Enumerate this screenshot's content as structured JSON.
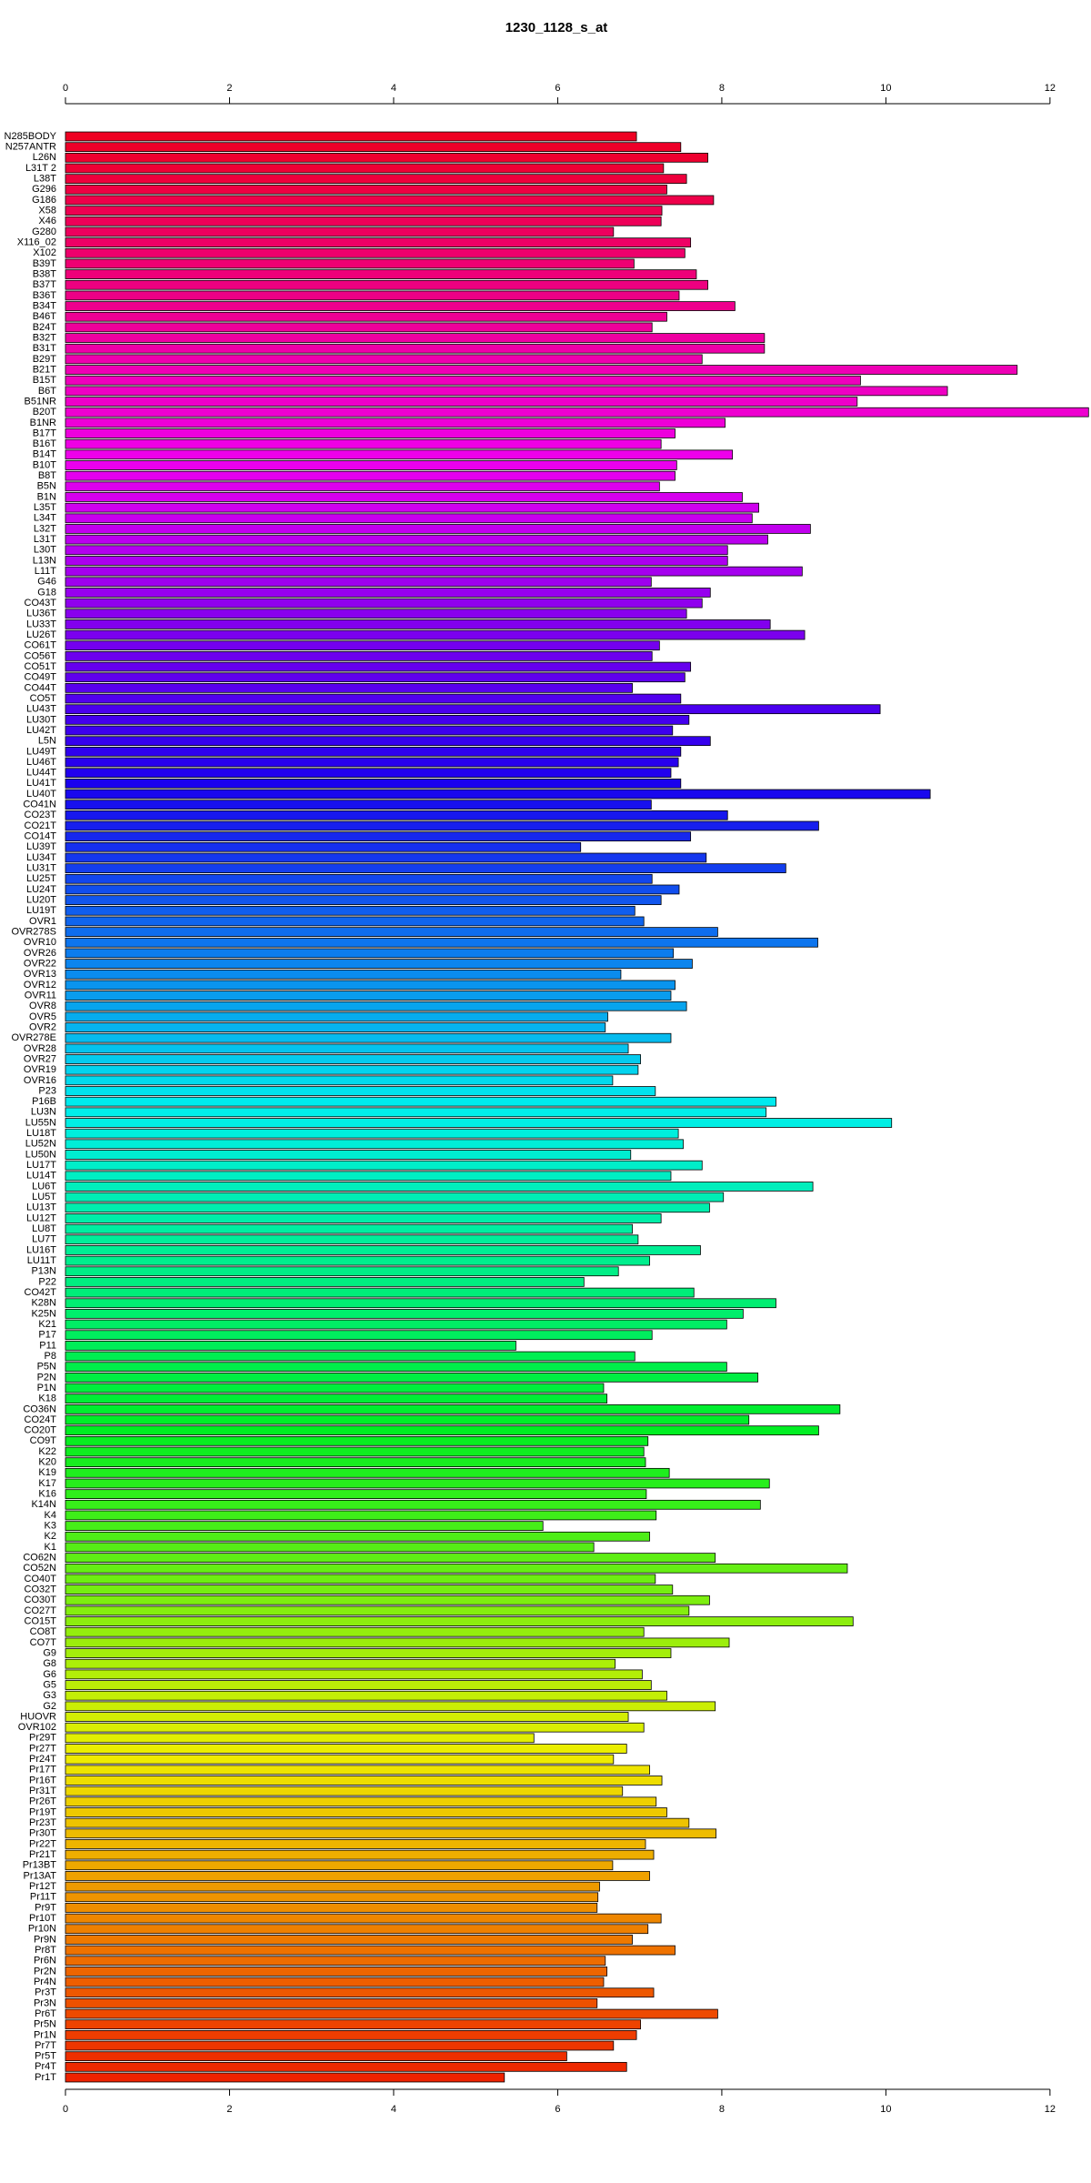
{
  "chart_data": {
    "type": "barh",
    "title": "1230_1128_s_at",
    "categories": [
      "N285BODY",
      "N257ANTR",
      "L26N",
      "L31T 2",
      "L38T",
      "G296",
      "G186",
      "X58",
      "X46",
      "G280",
      "X116_02",
      "X102",
      "B39T",
      "B38T",
      "B37T",
      "B36T",
      "B34T",
      "B46T",
      "B24T",
      "B32T",
      "B31T",
      "B29T",
      "B21T",
      "B15T",
      "B6T",
      "B51NR",
      "B20T",
      "B1NR",
      "B17T",
      "B16T",
      "B14T",
      "B10T",
      "B8T",
      "B5N",
      "B1N",
      "L35T",
      "L34T",
      "L32T",
      "L31T",
      "L30T",
      "L13N",
      "L11T",
      "G46",
      "G18",
      "CO43T",
      "LU36T",
      "LU33T",
      "LU26T",
      "CO61T",
      "CO56T",
      "CO51T",
      "CO49T",
      "CO44T",
      "CO5T",
      "LU43T",
      "LU30T",
      "LU42T",
      "L5N",
      "LU49T",
      "LU46T",
      "LU44T",
      "LU41T",
      "LU40T",
      "CO41N",
      "CO23T",
      "CO21T",
      "CO14T",
      "LU39T",
      "LU34T",
      "LU31T",
      "LU25T",
      "LU24T",
      "LU20T",
      "LU19T",
      "OVR1",
      "OVR278S",
      "OVR10",
      "OVR26",
      "OVR22",
      "OVR13",
      "OVR12",
      "OVR11",
      "OVR8",
      "OVR5",
      "OVR2",
      "OVR278E",
      "OVR28",
      "OVR27",
      "OVR19",
      "OVR16",
      "P23",
      "P16B",
      "LU3N",
      "LU55N",
      "LU18T",
      "LU52N",
      "LU50N",
      "LU17T",
      "LU14T",
      "LU6T",
      "LU5T",
      "LU13T",
      "LU12T",
      "LU8T",
      "LU7T",
      "LU16T",
      "LU11T",
      "P13N",
      "P22",
      "CO42T",
      "K28N",
      "K25N",
      "K21",
      "P17",
      "P11",
      "P8",
      "P5N",
      "P2N",
      "P1N",
      "K18",
      "CO36N",
      "CO24T",
      "CO20T",
      "CO9T",
      "K22",
      "K20",
      "K19",
      "K17",
      "K16",
      "K14N",
      "K4",
      "K3",
      "K2",
      "K1",
      "CO62N",
      "CO52N",
      "CO40T",
      "CO32T",
      "CO30T",
      "CO27T",
      "CO15T",
      "CO8T",
      "CO7T",
      "G9",
      "G8",
      "G6",
      "G5",
      "G3",
      "G2",
      "HUOVR",
      "OVR102",
      "Pr29T",
      "Pr27T",
      "Pr24T",
      "Pr17T",
      "Pr16T",
      "Pr31T",
      "Pr26T",
      "Pr19T",
      "Pr23T",
      "Pr30T",
      "Pr22T",
      "Pr21T",
      "Pr13BT",
      "Pr13AT",
      "Pr12T",
      "Pr11T",
      "Pr9T",
      "Pr10T",
      "Pr10N",
      "Pr9N",
      "Pr8T",
      "Pr6N",
      "Pr2N",
      "Pr4N",
      "Pr3T",
      "Pr3N",
      "Pr6T",
      "Pr5N",
      "Pr1N",
      "Pr7T",
      "Pr5T",
      "Pr4T",
      "Pr1T"
    ],
    "values": [
      6.96,
      7.5,
      7.83,
      7.29,
      7.57,
      7.33,
      7.9,
      7.27,
      7.26,
      6.68,
      7.62,
      7.55,
      6.93,
      7.69,
      7.83,
      7.48,
      8.16,
      7.33,
      7.15,
      8.52,
      8.52,
      7.76,
      11.6,
      9.69,
      10.75,
      9.65,
      12.47,
      8.04,
      7.43,
      7.26,
      8.13,
      7.45,
      7.43,
      7.24,
      8.25,
      8.45,
      8.37,
      9.08,
      8.56,
      8.07,
      8.07,
      8.98,
      7.14,
      7.86,
      7.76,
      7.57,
      8.59,
      9.01,
      7.24,
      7.15,
      7.62,
      7.55,
      6.91,
      7.5,
      9.93,
      7.6,
      7.4,
      7.86,
      7.5,
      7.47,
      7.38,
      7.5,
      10.54,
      7.14,
      8.07,
      9.18,
      7.62,
      6.28,
      7.81,
      8.78,
      7.15,
      7.48,
      7.26,
      6.94,
      7.05,
      7.95,
      9.17,
      7.41,
      7.64,
      6.77,
      7.43,
      7.38,
      7.57,
      6.61,
      6.58,
      7.38,
      6.86,
      7.01,
      6.98,
      6.67,
      7.19,
      8.66,
      8.54,
      10.07,
      7.47,
      7.53,
      6.89,
      7.76,
      7.38,
      9.11,
      8.02,
      7.85,
      7.26,
      6.91,
      6.98,
      7.74,
      7.12,
      6.74,
      6.32,
      7.66,
      8.66,
      8.26,
      8.06,
      7.15,
      5.49,
      6.94,
      8.06,
      8.44,
      6.56,
      6.6,
      9.44,
      8.33,
      9.18,
      7.1,
      7.05,
      7.07,
      7.36,
      8.58,
      7.08,
      8.47,
      7.2,
      5.82,
      7.12,
      6.44,
      7.92,
      9.53,
      7.19,
      7.4,
      7.85,
      7.6,
      9.6,
      7.05,
      8.09,
      7.38,
      6.7,
      7.03,
      7.14,
      7.33,
      7.92,
      6.86,
      7.05,
      5.71,
      6.84,
      6.68,
      7.12,
      7.27,
      6.79,
      7.2,
      7.33,
      7.6,
      7.93,
      7.07,
      7.17,
      6.67,
      7.12,
      6.51,
      6.49,
      6.48,
      7.26,
      7.1,
      6.91,
      7.43,
      6.58,
      6.6,
      6.56,
      7.17,
      6.48,
      7.95,
      7.01,
      6.96,
      6.68,
      6.11,
      6.84,
      5.35
    ],
    "palette": [
      "#ee0022",
      "#ee00ee",
      "#1a00ee",
      "#00eeee",
      "#00ee22",
      "#eeee00",
      "#ee2200"
    ],
    "xlim": [
      0,
      12.5
    ],
    "xticks": [
      0,
      2,
      4,
      6,
      8,
      10,
      12
    ]
  }
}
